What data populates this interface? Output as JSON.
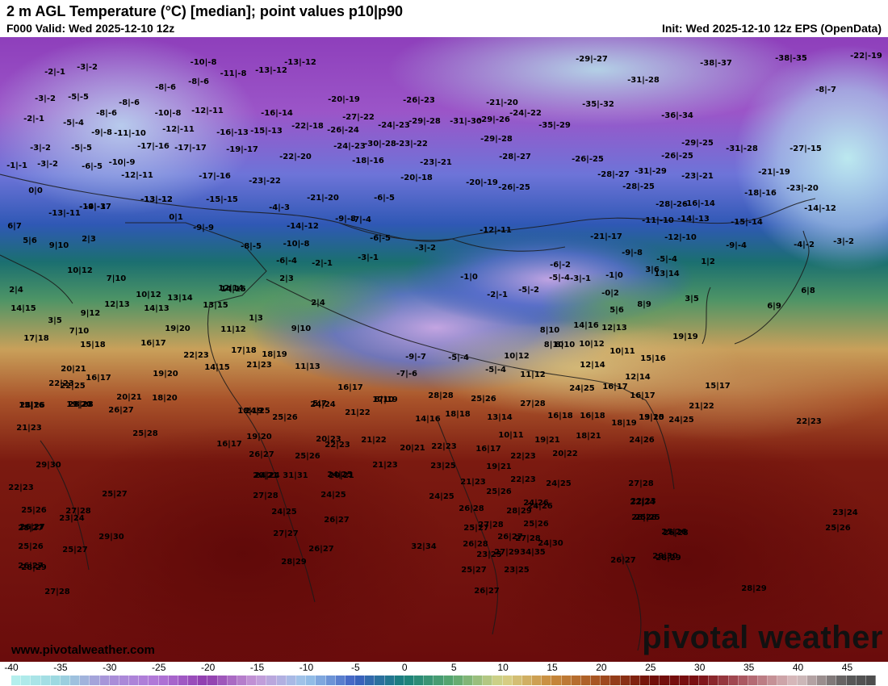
{
  "header": {
    "title": "2 m AGL Temperature (°C) [median]; point values p10|p90",
    "valid": "F000 Valid: Wed 2025-12-10 12z",
    "init": "Init: Wed 2025-12-10 12z EPS (OpenData)"
  },
  "footer": {
    "website": "www.pivotalweather.com",
    "brand": "pivotal weather"
  },
  "colorbar": {
    "ticks": [
      "-40",
      "-35",
      "-30",
      "-25",
      "-20",
      "-15",
      "-10",
      "-5",
      "0",
      "5",
      "10",
      "15",
      "20",
      "25",
      "30",
      "35",
      "40",
      "45"
    ],
    "min": -40,
    "max": 48,
    "stops": [
      {
        "t": -40,
        "c": "#b7f2ee"
      },
      {
        "t": -35,
        "c": "#9ad6e0"
      },
      {
        "t": -30,
        "c": "#a88fd8"
      },
      {
        "t": -25,
        "c": "#b276d8"
      },
      {
        "t": -20,
        "c": "#8e3aad"
      },
      {
        "t": -15,
        "c": "#c59ad8"
      },
      {
        "t": -10,
        "c": "#9cc6ea"
      },
      {
        "t": -5,
        "c": "#3c5fc2"
      },
      {
        "t": 0,
        "c": "#17807a"
      },
      {
        "t": 5,
        "c": "#5aa86e"
      },
      {
        "t": 10,
        "c": "#d7d48a"
      },
      {
        "t": 15,
        "c": "#c88a3c"
      },
      {
        "t": 20,
        "c": "#a35020"
      },
      {
        "t": 25,
        "c": "#6f0e08"
      },
      {
        "t": 30,
        "c": "#7a0e12"
      },
      {
        "t": 35,
        "c": "#b0606a"
      },
      {
        "t": 40,
        "c": "#d9c1c2"
      },
      {
        "t": 45,
        "c": "#5a5a5a"
      },
      {
        "t": 48,
        "c": "#4a4a4a"
      }
    ]
  },
  "map": {
    "point_values": [
      "-2|-1",
      "-3|-2",
      "-10|-8",
      "-11|-8",
      "-13|-12",
      "-13|-12",
      "-29|-27",
      "-38|-37",
      "-38|-35",
      "-22|-19",
      "-8|-6",
      "-8|-6",
      "-31|-28",
      "-8|-7",
      "-3|-2",
      "-5|-5",
      "-8|-6",
      "-12|-11",
      "-20|-19",
      "-26|-23",
      "-21|-20",
      "-35|-32",
      "-2|-1",
      "-8|-6",
      "-10|-8",
      "-16|-14",
      "-27|-22",
      "-24|-22",
      "-36|-34",
      "-5|-4",
      "-9|-8",
      "-11|-10",
      "-12|-11",
      "-16|-13",
      "-15|-13",
      "-22|-18",
      "-26|-24",
      "-24|-23",
      "-29|-28",
      "-31|-30",
      "-29|-26",
      "-35|-29",
      "-3|-2",
      "-5|-5",
      "-17|-16",
      "-17|-17",
      "-19|-17",
      "-24|-23",
      "-30|-28",
      "-23|-22",
      "-29|-28",
      "-29|-25",
      "-31|-28",
      "-27|-15",
      "-1|-1",
      "-3|-2",
      "-6|-5",
      "-10|-9",
      "-22|-20",
      "-18|-16",
      "-23|-21",
      "-28|-27",
      "-26|-25",
      "-26|-25",
      "-12|-11",
      "-17|-16",
      "-23|-22",
      "-20|-18",
      "-20|-19",
      "-28|-27",
      "-31|-29",
      "-23|-21",
      "-21|-19",
      "0|0",
      "-13|-12",
      "-15|-15",
      "-21|-20",
      "-6|-5",
      "-26|-25",
      "-28|-25",
      "-18|-16",
      "-23|-20",
      "-28|-26",
      "-16|-14",
      "-19|-17",
      "-4|-3",
      "-14|-12",
      "-13|-11",
      "0|1",
      "-9|-8",
      "-9|-9",
      "-7|-4",
      "-11|-10",
      "-14|-13",
      "-15|-14",
      "6|7",
      "-14|-12",
      "-12|-11",
      "-13|-12",
      "2|3",
      "-21|-17",
      "5|6",
      "9|10",
      "-6|-5",
      "-12|-10",
      "-9|-4",
      "-3|-2",
      "-8|-5",
      "-10|-8",
      "-3|-2",
      "-9|-8",
      "-4|-3",
      "-4|-2",
      "-6|-4",
      "-2|-1",
      "-3|-1",
      "-5|-4",
      "-6|-2",
      "10|12",
      "-1|0",
      "3|6",
      "1|2",
      "-5|-4",
      "-1|0",
      "-2|-1",
      "-5|-2",
      "-3|-1",
      "-0|2",
      "13|14",
      "7|10",
      "2|3",
      "2|4",
      "12|14",
      "10|12",
      "13|14",
      "3|5",
      "12|13",
      "14|13",
      "14|15",
      "13|15",
      "14|15",
      "1|3",
      "5|6",
      "8|9",
      "2|4",
      "9|12",
      "3|5",
      "6|8",
      "6|9",
      "7|10",
      "19|20",
      "11|12",
      "14|16",
      "17|18",
      "8|10",
      "12|13",
      "8|10",
      "15|18",
      "16|17",
      "17|18",
      "18|19",
      "9|10",
      "10|12",
      "10|11",
      "-9|-7",
      "-5|-4",
      "10|12",
      "8|10",
      "15|16",
      "19|19",
      "22|23",
      "21|23",
      "19|20",
      "14|15",
      "20|21",
      "11|13",
      "-7|-6",
      "-5|-4",
      "11|12",
      "12|14",
      "12|14",
      "16|17",
      "22|23",
      "22|25",
      "16|17",
      "24|25",
      "16|17",
      "15|17",
      "16|17",
      "15|16",
      "19|20",
      "28|28",
      "25|26",
      "27|28",
      "20|21",
      "18|20",
      "18|19",
      "5|7",
      "8|10",
      "13|15",
      "21|22",
      "24|26",
      "28|28",
      "24|25",
      "25|26",
      "24|24",
      "21|22",
      "17|19",
      "14|16",
      "18|18",
      "13|14",
      "16|18",
      "16|18",
      "18|19",
      "19|20",
      "24|25",
      "22|23",
      "21|23",
      "26|27",
      "25|28",
      "19|20",
      "16|17",
      "20|23",
      "10|11",
      "19|21",
      "18|21",
      "24|26",
      "26|27",
      "25|26",
      "22|23",
      "21|22",
      "20|21",
      "22|23",
      "16|17",
      "22|23",
      "20|22",
      "29|30",
      "24|24",
      "20|21",
      "21|23",
      "23|25",
      "19|21",
      "20|21",
      "31|31",
      "24|25",
      "21|23",
      "22|23",
      "24|25",
      "27|28",
      "25|27",
      "27|28",
      "24|25",
      "24|25",
      "25|26",
      "24|26",
      "22|23",
      "27|28",
      "22|23",
      "26|28",
      "28|29",
      "25|26",
      "24|25",
      "26|27",
      "24|26",
      "22|24",
      "28|27",
      "27|28",
      "23|24",
      "23|24",
      "25|26",
      "25|25",
      "26|27",
      "27|27",
      "25|27",
      "26|27",
      "26|28",
      "25|26",
      "29|30",
      "27|28",
      "24|30",
      "28|28",
      "25|26",
      "25|27",
      "26|27",
      "32|34",
      "26|28",
      "23|25",
      "27|29",
      "25|26",
      "29|30",
      "34|35",
      "26|27",
      "28|29",
      "26|27",
      "28|29",
      "25|27",
      "23|25",
      "26|27",
      "28|29",
      "28|29",
      "27|28"
    ]
  }
}
